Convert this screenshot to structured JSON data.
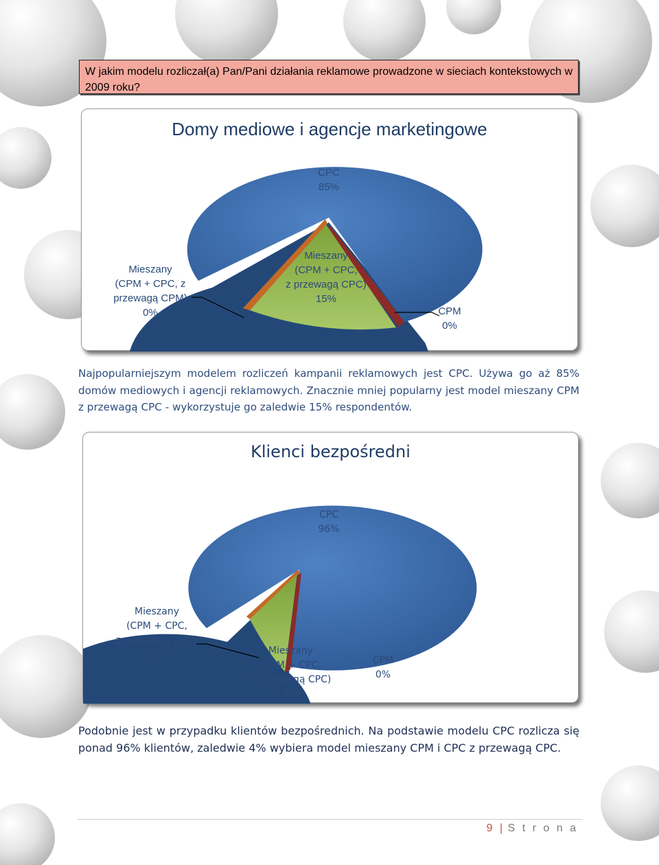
{
  "question": "W jakim modelu rozliczał(a) Pan/Pani działania reklamowe prowadzone w sieciach kontekstowych w 2009 roku?",
  "charts": [
    {
      "title": "Domy mediowe i agencje marketingowe",
      "labels": {
        "cpc": [
          "CPC",
          "85%"
        ],
        "mixed_cpm": [
          "Mieszany",
          "(CPM + CPC, z",
          "przewagą CPM)",
          "0%"
        ],
        "mixed_cpc": [
          "Mieszany",
          "(CPM + CPC,",
          "z przewagą CPC)",
          "15%"
        ],
        "cpm": [
          "CPM",
          "0%"
        ]
      }
    },
    {
      "title": "Klienci bezpośredni",
      "labels": {
        "cpc": [
          "CPC",
          "96%"
        ],
        "mixed_cpm": [
          "Mieszany",
          "(CPM + CPC,",
          "z przewagą CPM)",
          "0%"
        ],
        "mixed_cpc": [
          "Mieszany",
          "(CPM + CPC,",
          "z przewagą CPC)",
          "4%"
        ],
        "cpm": [
          "CPM",
          "0%"
        ]
      }
    }
  ],
  "chart_data": [
    {
      "type": "pie",
      "title": "Domy mediowe i agencje marketingowe",
      "categories": [
        "CPC",
        "Mieszany (CPM + CPC, z przewagą CPC)",
        "Mieszany (CPM + CPC, z przewagą CPM)",
        "CPM"
      ],
      "values": [
        85,
        15,
        0,
        0
      ],
      "colors": [
        "#3a6aae",
        "#9bbb59",
        "#c0504d",
        "#d07a3a"
      ]
    },
    {
      "type": "pie",
      "title": "Klienci bezpośredni",
      "categories": [
        "CPC",
        "Mieszany (CPM + CPC, z przewagą CPC)",
        "Mieszany (CPM + CPC, z przewagą CPM)",
        "CPM"
      ],
      "values": [
        96,
        4,
        0,
        0
      ],
      "colors": [
        "#3a6aae",
        "#9bbb59",
        "#c0504d",
        "#d07a3a"
      ]
    }
  ],
  "paragraphs": {
    "p1": "Najpopularniejszym modelem rozliczeń kampanii reklamowych jest CPC. Używa go aż 85% domów mediowych i agencji reklamowych. Znacznie mniej popularny jest model mieszany CPM z przewagą CPC - wykorzystuje go zaledwie 15% respondentów.",
    "p2": "Podobnie jest w przypadku klientów bezpośrednich. Na podstawie modelu CPC rozlicza się ponad 96% klientów, zaledwie 4% wybiera model mieszany CPM i CPC z przewagą CPC."
  },
  "footer": {
    "page_number": "9",
    "separator": "|",
    "label": "S t r o n a"
  }
}
